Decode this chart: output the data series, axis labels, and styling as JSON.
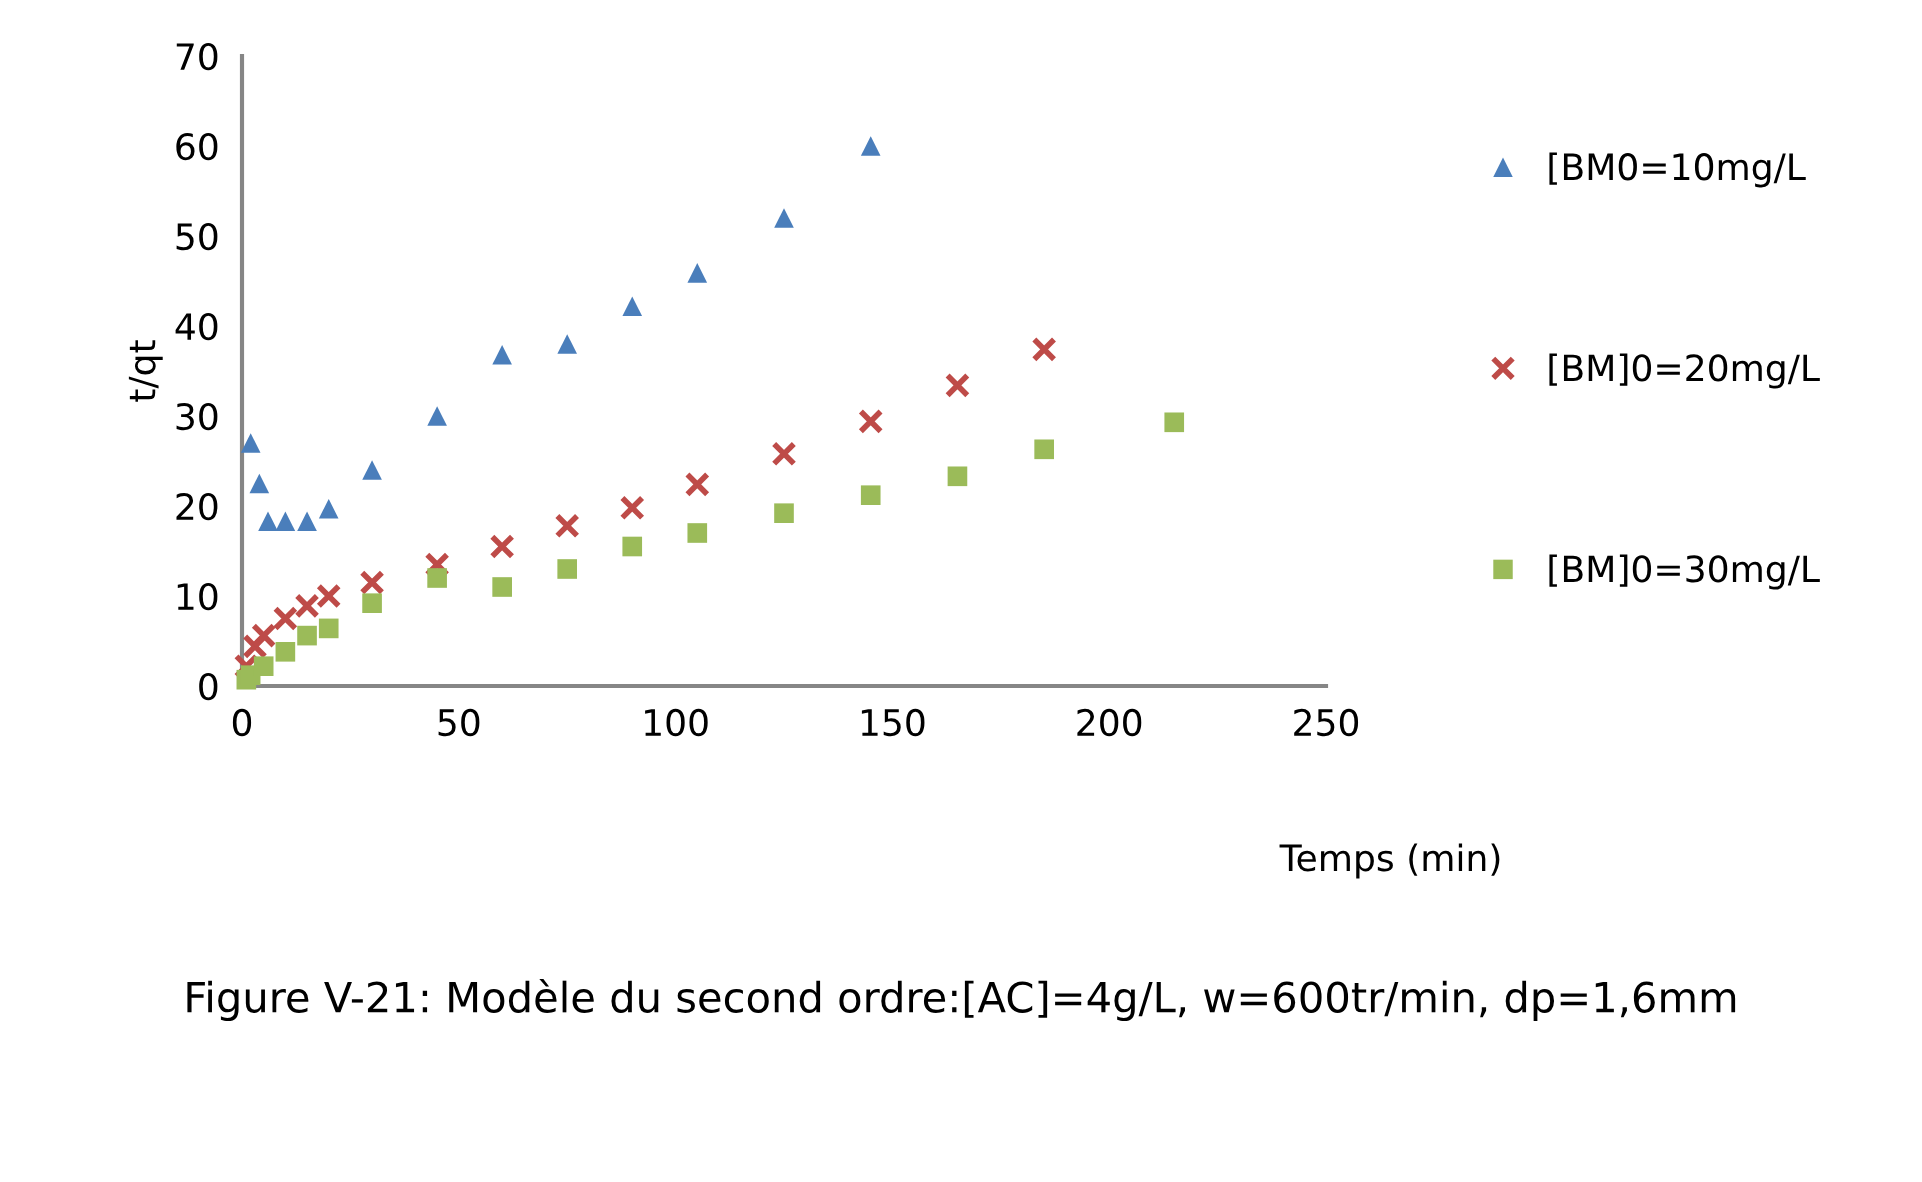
{
  "chart_data": {
    "type": "scatter",
    "title": "Figure V-21: Modèle du second ordre:[AC]=4g/L, w=600tr/min, dp=1,6mm",
    "xlabel": "Temps (min)",
    "ylabel": "t/qt",
    "xlim": [
      0,
      250
    ],
    "xticks": [
      0,
      50,
      100,
      150,
      200,
      250
    ],
    "ylim": [
      0,
      70
    ],
    "yticks": [
      0,
      10,
      20,
      30,
      40,
      50,
      60,
      70
    ],
    "grid": false,
    "legend": "right",
    "series": [
      {
        "name": "[BM0=10mg/L",
        "color": "#4a7ebb",
        "marker": "triangle",
        "x": [
          2,
          4,
          6,
          10,
          15,
          20,
          30,
          45,
          60,
          75,
          90,
          105,
          125,
          145
        ],
        "values": [
          27,
          22.5,
          18.3,
          18.3,
          18.3,
          19.7,
          24,
          30,
          36.8,
          38,
          42.2,
          45.9,
          52,
          60
        ]
      },
      {
        "name": "[BM]0=20mg/L",
        "color": "#be4b48",
        "marker": "cross",
        "x": [
          1,
          3,
          5,
          10,
          15,
          20,
          30,
          45,
          60,
          75,
          90,
          105,
          125,
          145,
          165,
          185
        ],
        "values": [
          2.2,
          4.4,
          5.6,
          7.5,
          8.9,
          10,
          11.5,
          13.5,
          15.5,
          17.8,
          19.8,
          22.4,
          25.8,
          29.4,
          33.4,
          37.4
        ]
      },
      {
        "name": "[BM]0=30mg/L",
        "color": "#9bbb59",
        "marker": "square",
        "x": [
          1,
          2,
          5,
          10,
          15,
          20,
          30,
          45,
          60,
          75,
          90,
          105,
          125,
          145,
          165,
          185,
          215
        ],
        "values": [
          0.7,
          1.2,
          2.2,
          3.8,
          5.6,
          6.4,
          9.2,
          12,
          11,
          13,
          15.5,
          17,
          19.2,
          21.2,
          23.3,
          26.3,
          29.3
        ]
      }
    ]
  }
}
